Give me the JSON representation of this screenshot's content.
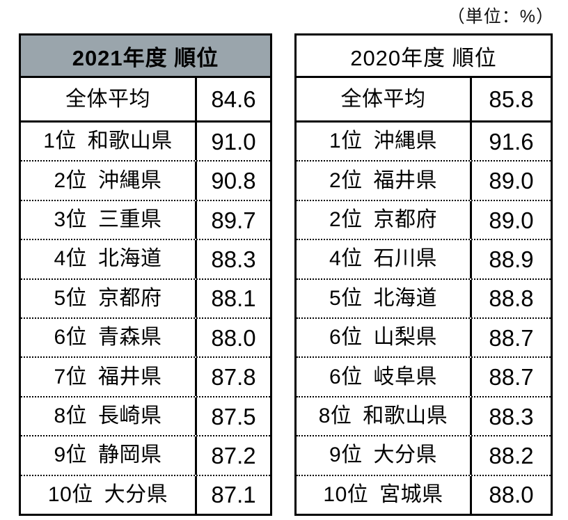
{
  "unit_label": "（単位：%）",
  "colors": {
    "header_fill_2021": "#9AA5AC",
    "header_fill_2020": "#FFFFFF",
    "border": "#000000",
    "text": "#000000",
    "background": "#FFFFFF"
  },
  "chart_data": [
    {
      "type": "table",
      "title": "2021年度 順位",
      "unit": "%",
      "rows": [
        {
          "kind": "average",
          "label": "全体平均",
          "value": "84.6"
        },
        {
          "kind": "rank",
          "label": "1位 和歌山県",
          "value": "91.0"
        },
        {
          "kind": "rank",
          "label": "2位 沖縄県",
          "value": "90.8"
        },
        {
          "kind": "rank",
          "label": "3位 三重県",
          "value": "89.7"
        },
        {
          "kind": "rank",
          "label": "4位 北海道",
          "value": "88.3"
        },
        {
          "kind": "rank",
          "label": "5位 京都府",
          "value": "88.1"
        },
        {
          "kind": "rank",
          "label": "6位 青森県",
          "value": "88.0"
        },
        {
          "kind": "rank",
          "label": "7位 福井県",
          "value": "87.8"
        },
        {
          "kind": "rank",
          "label": "8位 長崎県",
          "value": "87.5"
        },
        {
          "kind": "rank",
          "label": "9位 静岡県",
          "value": "87.2"
        },
        {
          "kind": "rank",
          "label": "10位 大分県",
          "value": "87.1"
        }
      ]
    },
    {
      "type": "table",
      "title": "2020年度 順位",
      "unit": "%",
      "rows": [
        {
          "kind": "average",
          "label": "全体平均",
          "value": "85.8"
        },
        {
          "kind": "rank",
          "label": "1位 沖縄県",
          "value": "91.6"
        },
        {
          "kind": "rank",
          "label": "2位 福井県",
          "value": "89.0"
        },
        {
          "kind": "rank",
          "label": "2位 京都府",
          "value": "89.0"
        },
        {
          "kind": "rank",
          "label": "4位 石川県",
          "value": "88.9"
        },
        {
          "kind": "rank",
          "label": "5位 北海道",
          "value": "88.8"
        },
        {
          "kind": "rank",
          "label": "6位 山梨県",
          "value": "88.7"
        },
        {
          "kind": "rank",
          "label": "6位 岐阜県",
          "value": "88.7"
        },
        {
          "kind": "rank",
          "label": "8位 和歌山県",
          "value": "88.3"
        },
        {
          "kind": "rank",
          "label": "9位 大分県",
          "value": "88.2"
        },
        {
          "kind": "rank",
          "label": "10位 宮城県",
          "value": "88.0"
        }
      ]
    }
  ]
}
